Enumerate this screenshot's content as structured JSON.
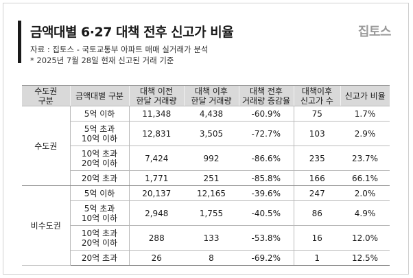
{
  "header": {
    "title": "금액대별 6·27 대책 전후 신고가 비율",
    "logo": "집토스",
    "source": "자료 : 집토스 - 국토교통부 아파트 매매 실거래가 분석",
    "note": "* 2025년 7월 28일 현재 신고된 거래 기준"
  },
  "table": {
    "headers": [
      [
        "수도권",
        "구분"
      ],
      [
        "금액대별 구분"
      ],
      [
        "대책 이전",
        "한달 거래량"
      ],
      [
        "대책 이후",
        "한달 거래량"
      ],
      [
        "대책 전후",
        "거래량 증감율"
      ],
      [
        "대책이후",
        "신고가 수"
      ],
      [
        "신고가 비율"
      ]
    ],
    "groups": [
      {
        "name": "수도권",
        "rows": [
          {
            "range": [
              "5억 이하"
            ],
            "before": "11,348",
            "after": "4,438",
            "change": "-60.9%",
            "highs": "75",
            "ratio": "1.7%"
          },
          {
            "range": [
              "5억 초과",
              "10억 이하"
            ],
            "before": "12,831",
            "after": "3,505",
            "change": "-72.7%",
            "highs": "103",
            "ratio": "2.9%"
          },
          {
            "range": [
              "10억 초과",
              "20억 이하"
            ],
            "before": "7,424",
            "after": "992",
            "change": "-86.6%",
            "highs": "235",
            "ratio": "23.7%"
          },
          {
            "range": [
              "20억 초과"
            ],
            "before": "1,771",
            "after": "251",
            "change": "-85.8%",
            "highs": "166",
            "ratio": "66.1%"
          }
        ]
      },
      {
        "name": "비수도권",
        "rows": [
          {
            "range": [
              "5억 이하"
            ],
            "before": "20,137",
            "after": "12,165",
            "change": "-39.6%",
            "highs": "247",
            "ratio": "2.0%"
          },
          {
            "range": [
              "5억 초과",
              "10억 이하"
            ],
            "before": "2,948",
            "after": "1,755",
            "change": "-40.5%",
            "highs": "86",
            "ratio": "4.9%"
          },
          {
            "range": [
              "10억 초과",
              "20억 이하"
            ],
            "before": "288",
            "after": "133",
            "change": "-53.8%",
            "highs": "16",
            "ratio": "12.0%"
          },
          {
            "range": [
              "20억 초과"
            ],
            "before": "26",
            "after": "8",
            "change": "-69.2%",
            "highs": "1",
            "ratio": "12.5%"
          }
        ]
      }
    ]
  }
}
